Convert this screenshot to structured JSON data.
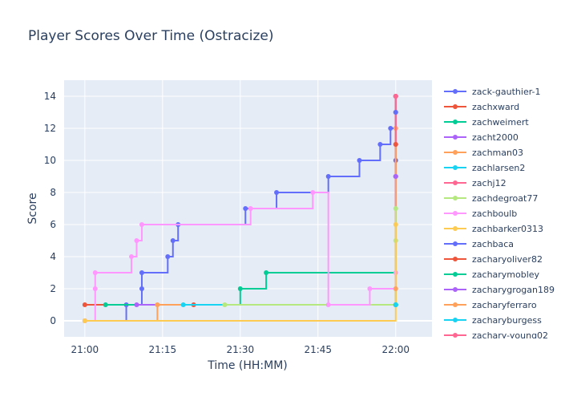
{
  "chart_data": {
    "type": "line",
    "line_shape": "step",
    "title": "Player Scores Over Time (Ostracize)",
    "xlabel": "Time (HH:MM)",
    "ylabel": "Score",
    "x_unit": "HH:MM",
    "xlim": [
      "20:56",
      "22:07"
    ],
    "ylim": [
      -1,
      15
    ],
    "x_ticks": [
      "21:00",
      "21:15",
      "21:30",
      "21:45",
      "22:00"
    ],
    "y_ticks": [
      0,
      2,
      4,
      6,
      8,
      10,
      12,
      14
    ],
    "grid": true,
    "background": "#e5ecf6",
    "legend_position": "right",
    "series": [
      {
        "name": "zack-gauthier-1",
        "color": "#636efa",
        "x": [
          "21:00",
          "21:08",
          "21:11",
          "21:11",
          "21:16",
          "21:17",
          "21:18",
          "21:31",
          "21:37",
          "21:47",
          "21:53",
          "21:57",
          "21:59",
          "22:00",
          "22:00",
          "22:00",
          "22:00"
        ],
        "y": [
          0,
          1,
          2,
          3,
          4,
          5,
          6,
          7,
          8,
          9,
          10,
          11,
          12,
          10,
          9,
          13,
          14
        ]
      },
      {
        "name": "zachxward",
        "color": "#ef553b",
        "x": [
          "21:00",
          "21:21",
          "22:00"
        ],
        "y": [
          1,
          1,
          14
        ]
      },
      {
        "name": "zachweimert",
        "color": "#00cc96",
        "x": [
          "21:04",
          "21:30",
          "21:35",
          "22:00"
        ],
        "y": [
          1,
          2,
          3,
          1
        ]
      },
      {
        "name": "zacht2000",
        "color": "#ab63fa",
        "x": [
          "21:10",
          "22:00"
        ],
        "y": [
          1,
          9
        ]
      },
      {
        "name": "zachman03",
        "color": "#ffa15a",
        "x": [
          "21:00",
          "21:14",
          "22:00"
        ],
        "y": [
          0,
          1,
          12
        ]
      },
      {
        "name": "zachlarsen2",
        "color": "#19d3f3",
        "x": [
          "21:19",
          "22:00"
        ],
        "y": [
          1,
          1
        ]
      },
      {
        "name": "zachj12",
        "color": "#ff6692",
        "x": [
          "22:00",
          "22:00"
        ],
        "y": [
          11,
          14
        ]
      },
      {
        "name": "zachdegroat77",
        "color": "#b6e880",
        "x": [
          "21:27",
          "22:00",
          "22:00"
        ],
        "y": [
          1,
          5,
          7
        ]
      },
      {
        "name": "zachboulb",
        "color": "#ff97ff",
        "x": [
          "21:00",
          "21:02",
          "21:02",
          "21:09",
          "21:10",
          "21:11",
          "21:32",
          "21:44",
          "21:47",
          "21:55",
          "22:00"
        ],
        "y": [
          0,
          2,
          3,
          4,
          5,
          6,
          7,
          8,
          1,
          2,
          3
        ]
      },
      {
        "name": "zachbarker0313",
        "color": "#fecb52",
        "x": [
          "21:00",
          "22:00"
        ],
        "y": [
          0,
          6
        ]
      },
      {
        "name": "zachbaca",
        "color": "#636efa",
        "x": [
          "22:00"
        ],
        "y": [
          13
        ]
      },
      {
        "name": "zacharyoliver82",
        "color": "#ef553b",
        "x": [
          "22:00"
        ],
        "y": [
          11
        ]
      },
      {
        "name": "zacharymobley",
        "color": "#00cc96",
        "x": [
          "22:00"
        ],
        "y": [
          1
        ]
      },
      {
        "name": "zacharygrogan189",
        "color": "#ab63fa",
        "x": [
          "22:00"
        ],
        "y": [
          9
        ]
      },
      {
        "name": "zacharyferraro",
        "color": "#ffa15a",
        "x": [
          "22:00"
        ],
        "y": [
          2
        ]
      },
      {
        "name": "zacharyburgess",
        "color": "#19d3f3",
        "x": [
          "22:00"
        ],
        "y": [
          1
        ]
      },
      {
        "name": "zachary-young02",
        "color": "#ff6692",
        "x": [
          "22:00"
        ],
        "y": [
          14
        ]
      }
    ]
  }
}
